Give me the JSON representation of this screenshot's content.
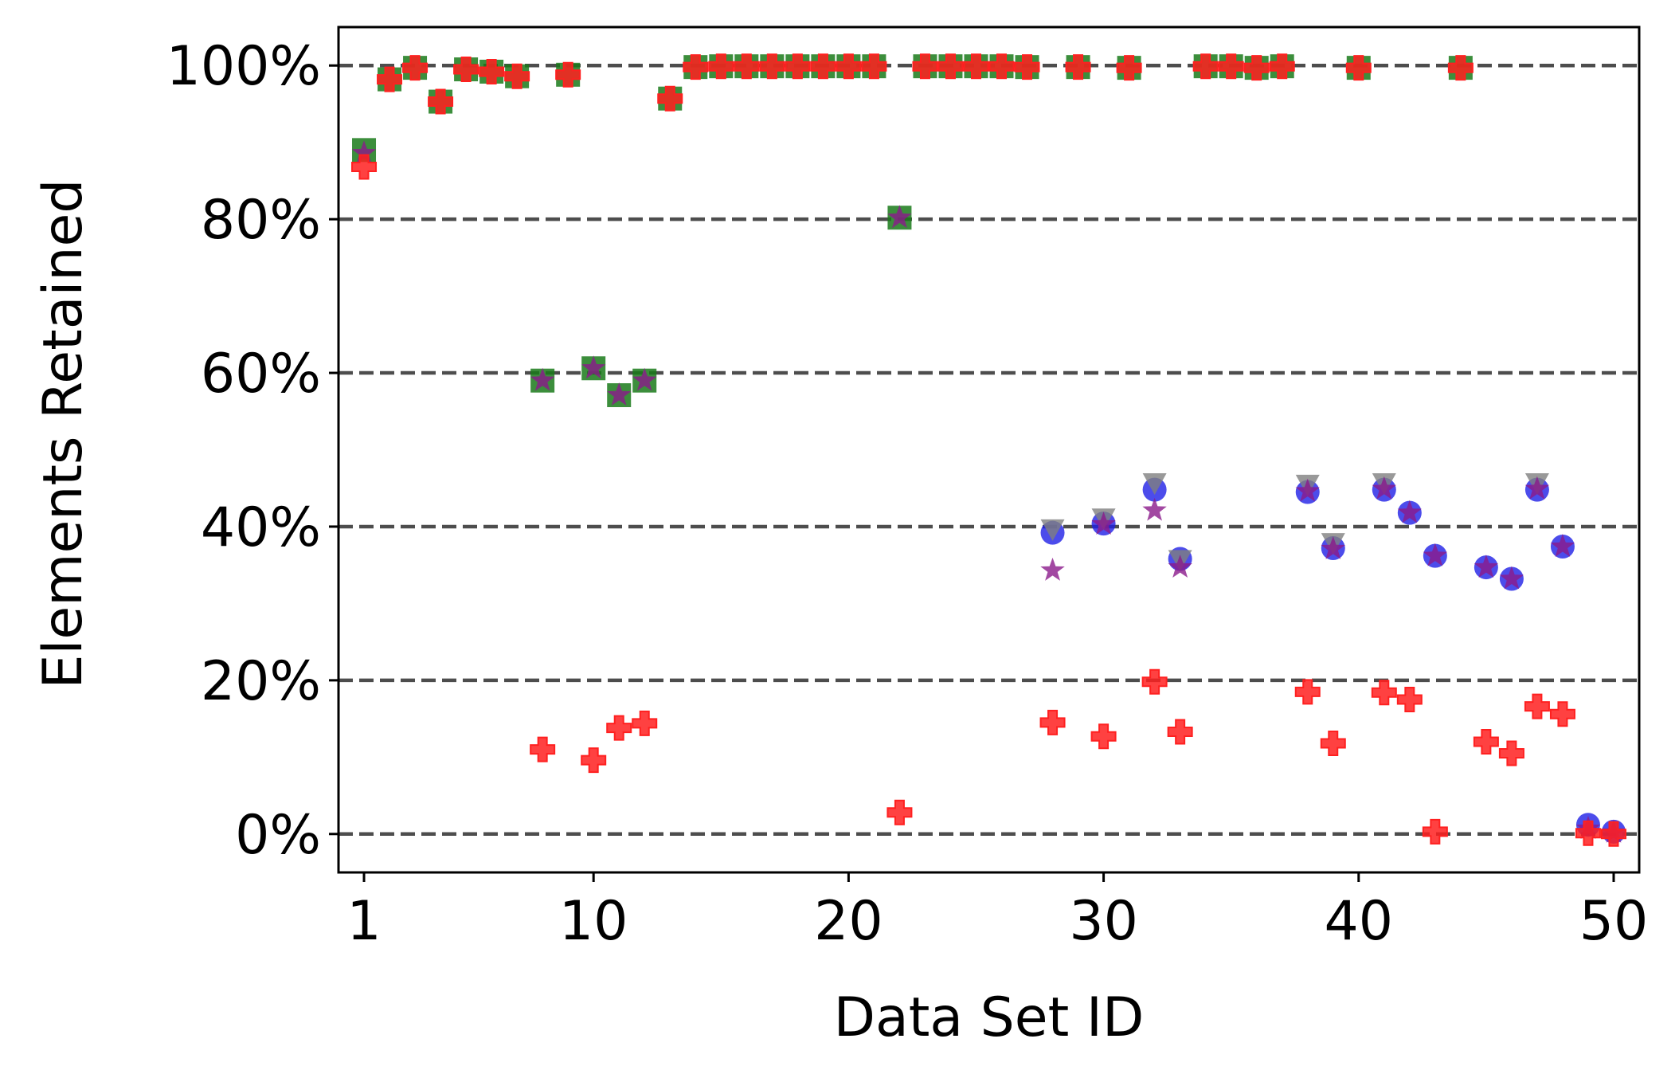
{
  "chart_data": {
    "type": "scatter",
    "title": "",
    "xlabel": "Data Set ID",
    "ylabel": "Elements Retained",
    "xlim": [
      0.0,
      51.0
    ],
    "ylim": [
      -5.0,
      105.0
    ],
    "x_ticks": [
      1,
      10,
      20,
      30,
      40,
      50
    ],
    "x_tick_labels": [
      "1",
      "10",
      "20",
      "30",
      "40",
      "50"
    ],
    "y_ticks": [
      0,
      20,
      40,
      60,
      80,
      100
    ],
    "y_tick_labels": [
      "0%",
      "20%",
      "40%",
      "60%",
      "80%",
      "100%"
    ],
    "grid": {
      "axis": "y",
      "style": "dashed",
      "color": "#4d4d4d"
    },
    "legend": "none",
    "series": [
      {
        "marker": "square",
        "color": "#1a7a1a",
        "points": [
          [
            1,
            89
          ],
          [
            2,
            98.2
          ],
          [
            3,
            99.7
          ],
          [
            4,
            95.3
          ],
          [
            5,
            99.5
          ],
          [
            6,
            99.2
          ],
          [
            7,
            98.6
          ],
          [
            8,
            59
          ],
          [
            9,
            98.8
          ],
          [
            10,
            60.6
          ],
          [
            11,
            57.1
          ],
          [
            12,
            59
          ],
          [
            13,
            95.7
          ],
          [
            14,
            99.8
          ],
          [
            15,
            99.9
          ],
          [
            16,
            99.9
          ],
          [
            17,
            99.9
          ],
          [
            18,
            99.9
          ],
          [
            19,
            99.9
          ],
          [
            20,
            99.9
          ],
          [
            21,
            99.9
          ],
          [
            22,
            80.2
          ],
          [
            23,
            99.9
          ],
          [
            24,
            99.9
          ],
          [
            25,
            99.9
          ],
          [
            26,
            99.9
          ],
          [
            27,
            99.8
          ],
          [
            29,
            99.8
          ],
          [
            31,
            99.7
          ],
          [
            34,
            99.9
          ],
          [
            35,
            99.9
          ],
          [
            36,
            99.7
          ],
          [
            37,
            99.9
          ],
          [
            40,
            99.7
          ],
          [
            44,
            99.7
          ]
        ]
      },
      {
        "marker": "circle",
        "color": "#1f1fe6",
        "points": [
          [
            28,
            39.2
          ],
          [
            30,
            40.4
          ],
          [
            32,
            44.8
          ],
          [
            33,
            35.8
          ],
          [
            38,
            44.5
          ],
          [
            39,
            37.2
          ],
          [
            41,
            44.8
          ],
          [
            42,
            41.8
          ],
          [
            43,
            36.2
          ],
          [
            45,
            34.7
          ],
          [
            46,
            33.2
          ],
          [
            47,
            44.8
          ],
          [
            48,
            37.4
          ],
          [
            49,
            1.2
          ],
          [
            50,
            0.3
          ]
        ]
      },
      {
        "marker": "triangle-down",
        "color": "#808080",
        "points": [
          [
            28,
            39.6
          ],
          [
            30,
            41
          ],
          [
            32,
            45.6
          ],
          [
            33,
            35.6
          ],
          [
            38,
            45.4
          ],
          [
            39,
            37.8
          ],
          [
            41,
            45.6
          ],
          [
            47,
            45.6
          ]
        ]
      },
      {
        "marker": "star",
        "color": "#8b1a8b",
        "points": [
          [
            1,
            88.6
          ],
          [
            8,
            59
          ],
          [
            10,
            60.6
          ],
          [
            11,
            57.1
          ],
          [
            12,
            59
          ],
          [
            22,
            80.2
          ],
          [
            28,
            34.3
          ],
          [
            30,
            40.3
          ],
          [
            32,
            42.1
          ],
          [
            33,
            34.7
          ],
          [
            38,
            44.6
          ],
          [
            39,
            37.1
          ],
          [
            41,
            44.9
          ],
          [
            42,
            41.8
          ],
          [
            43,
            36.2
          ],
          [
            45,
            34.7
          ],
          [
            46,
            33.2
          ],
          [
            47,
            44.9
          ],
          [
            48,
            37.4
          ],
          [
            49,
            0.7
          ],
          [
            50,
            0.2
          ]
        ]
      },
      {
        "marker": "plus",
        "color": "#ff2020",
        "points": [
          [
            1,
            86.8
          ],
          [
            2,
            98.2
          ],
          [
            3,
            99.7
          ],
          [
            4,
            95.3
          ],
          [
            5,
            99.5
          ],
          [
            6,
            99.2
          ],
          [
            7,
            98.6
          ],
          [
            8,
            11
          ],
          [
            9,
            98.8
          ],
          [
            10,
            9.6
          ],
          [
            11,
            13.8
          ],
          [
            12,
            14.4
          ],
          [
            13,
            95.7
          ],
          [
            14,
            99.8
          ],
          [
            15,
            99.9
          ],
          [
            16,
            99.9
          ],
          [
            17,
            99.9
          ],
          [
            18,
            99.9
          ],
          [
            19,
            99.9
          ],
          [
            20,
            99.9
          ],
          [
            21,
            99.9
          ],
          [
            22,
            2.8
          ],
          [
            23,
            99.9
          ],
          [
            24,
            99.9
          ],
          [
            25,
            99.9
          ],
          [
            26,
            99.9
          ],
          [
            27,
            99.8
          ],
          [
            28,
            14.5
          ],
          [
            29,
            99.8
          ],
          [
            30,
            12.7
          ],
          [
            31,
            99.7
          ],
          [
            32,
            19.8
          ],
          [
            33,
            13.3
          ],
          [
            34,
            99.9
          ],
          [
            35,
            99.9
          ],
          [
            36,
            99.7
          ],
          [
            37,
            99.9
          ],
          [
            38,
            18.5
          ],
          [
            39,
            11.8
          ],
          [
            40,
            99.7
          ],
          [
            41,
            18.4
          ],
          [
            42,
            17.5
          ],
          [
            43,
            0.3
          ],
          [
            44,
            99.7
          ],
          [
            45,
            12
          ],
          [
            46,
            10.5
          ],
          [
            47,
            16.6
          ],
          [
            48,
            15.6
          ],
          [
            49,
            0.1
          ],
          [
            50,
            0
          ]
        ]
      }
    ]
  }
}
